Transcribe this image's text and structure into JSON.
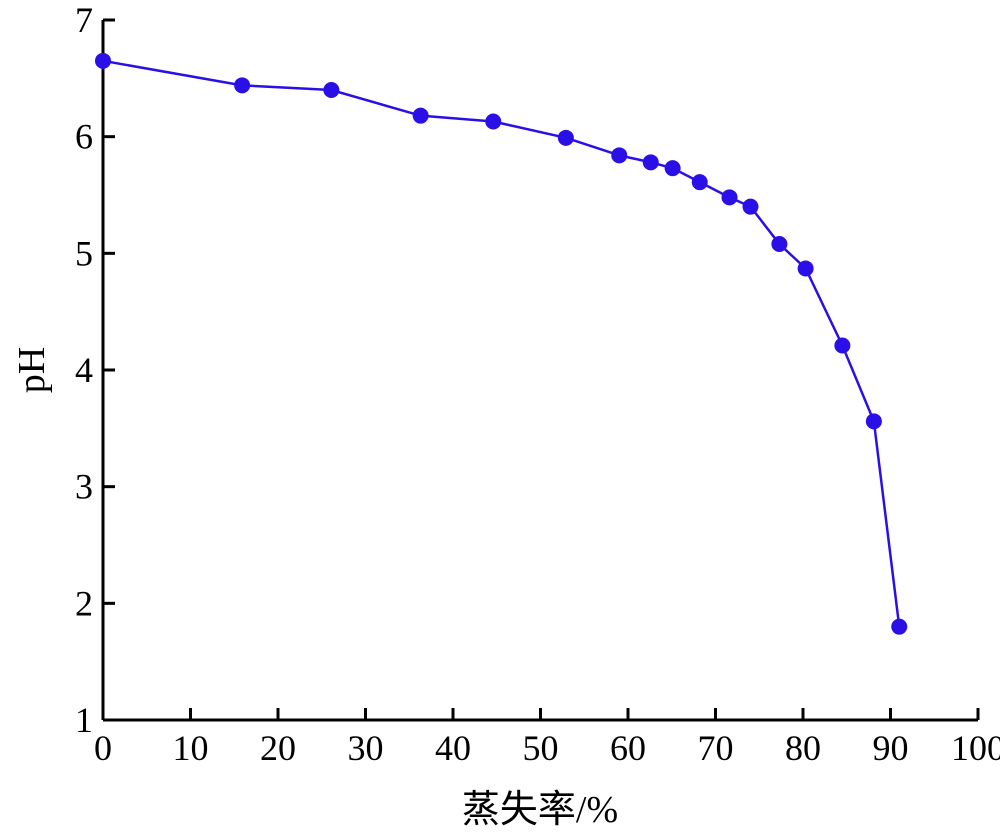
{
  "chart_data": {
    "type": "line",
    "xlabel": "蒸失率/%",
    "ylabel": "pH",
    "xlim": [
      0,
      100
    ],
    "ylim": [
      1,
      7
    ],
    "xticks": [
      0,
      10,
      20,
      30,
      40,
      50,
      60,
      70,
      80,
      90,
      100
    ],
    "yticks": [
      1,
      2,
      3,
      4,
      5,
      6,
      7
    ],
    "grid": false,
    "legend": "none",
    "series": [
      {
        "color": "#2a10e6",
        "x": [
          0,
          15.9,
          26.1,
          36.3,
          44.6,
          52.9,
          59.0,
          62.6,
          65.1,
          68.2,
          71.6,
          74.0,
          77.3,
          80.3,
          84.5,
          88.1,
          91.0
        ],
        "y": [
          6.65,
          6.44,
          6.4,
          6.18,
          6.13,
          5.99,
          5.84,
          5.78,
          5.73,
          5.61,
          5.48,
          5.4,
          5.08,
          4.87,
          4.21,
          3.56,
          1.8
        ]
      }
    ]
  }
}
